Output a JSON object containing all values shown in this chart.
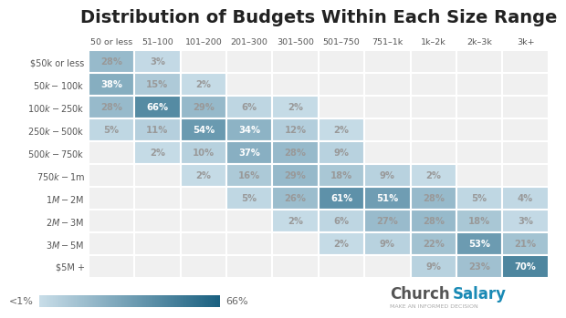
{
  "title": "Distribution of Budgets Within Each Size Range",
  "col_labels": [
    "50 or less",
    "51–100",
    "101–200",
    "201–300",
    "301–500",
    "501–750",
    "751–1k",
    "1k–2k",
    "2k–3k",
    "3k+"
  ],
  "row_labels": [
    "$50k or less",
    "$50k-$100k",
    "$100k-$250k",
    "$250k-$500k",
    "$500k-$750k",
    "$750k-$1m",
    "$1M-$2M",
    "$2M-$3M",
    "$3M-$5M",
    "$5M +"
  ],
  "values": [
    [
      28,
      3,
      0,
      0,
      0,
      0,
      0,
      0,
      0,
      0
    ],
    [
      38,
      15,
      2,
      0,
      0,
      0,
      0,
      0,
      0,
      0
    ],
    [
      28,
      66,
      29,
      6,
      2,
      0,
      0,
      0,
      0,
      0
    ],
    [
      5,
      11,
      54,
      34,
      12,
      2,
      0,
      0,
      0,
      0
    ],
    [
      0,
      2,
      10,
      37,
      28,
      9,
      0,
      0,
      0,
      0
    ],
    [
      0,
      0,
      2,
      16,
      29,
      18,
      9,
      2,
      0,
      0
    ],
    [
      0,
      0,
      0,
      5,
      26,
      61,
      51,
      28,
      5,
      4
    ],
    [
      0,
      0,
      0,
      0,
      2,
      6,
      27,
      28,
      18,
      3
    ],
    [
      0,
      0,
      0,
      0,
      0,
      2,
      9,
      22,
      53,
      21
    ],
    [
      0,
      0,
      0,
      0,
      0,
      0,
      0,
      9,
      23,
      70
    ]
  ],
  "color_low": "#c8dde8",
  "color_high": "#1a6080",
  "color_zero": "#f0f0f0",
  "text_color_dark": "#999999",
  "text_color_light": "#ffffff",
  "threshold": 30,
  "legend_label_low": "<1%",
  "legend_label_high": "66%",
  "background_color": "#ffffff",
  "title_fontsize": 14,
  "cell_fontsize": 7.2,
  "church_color": "#555555",
  "salary_color": "#1a8ab5",
  "subtitle_color": "#aaaaaa"
}
